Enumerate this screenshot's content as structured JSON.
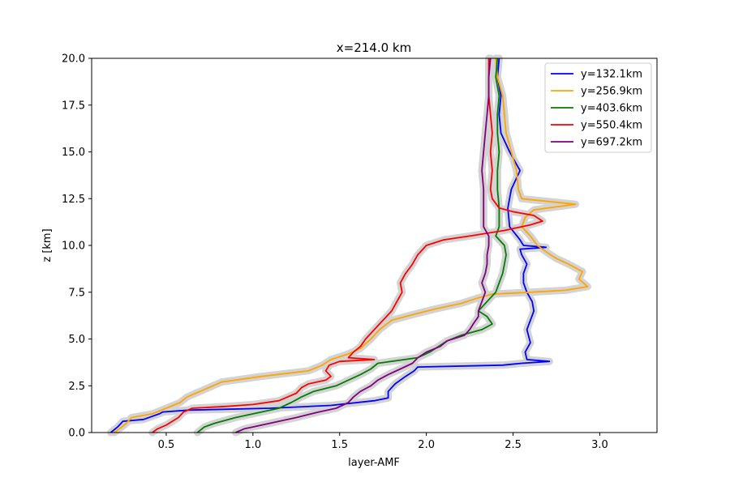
{
  "chart_data": {
    "type": "line",
    "title": "x=214.0 km",
    "xlabel": "layer-AMF",
    "ylabel": "z [km]",
    "xlim": [
      0.07,
      3.33
    ],
    "ylim": [
      0,
      20
    ],
    "xticks": [
      0.5,
      1.0,
      1.5,
      2.0,
      2.5,
      3.0
    ],
    "xtick_labels": [
      "0.5",
      "1.0",
      "1.5",
      "2.0",
      "2.5",
      "3.0"
    ],
    "yticks": [
      0,
      2.5,
      5.0,
      7.5,
      10.0,
      12.5,
      15.0,
      17.5,
      20.0
    ],
    "ytick_labels": [
      "0.0",
      "2.5",
      "5.0",
      "7.5",
      "10.0",
      "12.5",
      "15.0",
      "17.5",
      "20.0"
    ],
    "grid": false,
    "legend_position": "top-right",
    "uncertainty_band_color": "#d3d3d3",
    "series": [
      {
        "name": "y=132.1km",
        "color": "#0000ff",
        "points": [
          [
            0.18,
            0
          ],
          [
            0.22,
            0.3
          ],
          [
            0.25,
            0.6
          ],
          [
            0.37,
            0.7
          ],
          [
            0.46,
            1.0
          ],
          [
            0.48,
            1.1
          ],
          [
            0.63,
            1.2
          ],
          [
            1.1,
            1.3
          ],
          [
            1.45,
            1.45
          ],
          [
            1.7,
            1.7
          ],
          [
            1.78,
            1.85
          ],
          [
            1.78,
            2.2
          ],
          [
            1.82,
            2.6
          ],
          [
            1.88,
            3.0
          ],
          [
            1.93,
            3.3
          ],
          [
            1.95,
            3.5
          ],
          [
            2.44,
            3.6
          ],
          [
            2.55,
            3.7
          ],
          [
            2.71,
            3.8
          ],
          [
            2.58,
            3.9
          ],
          [
            2.57,
            4.3
          ],
          [
            2.6,
            4.8
          ],
          [
            2.58,
            5.5
          ],
          [
            2.6,
            6.0
          ],
          [
            2.62,
            6.5
          ],
          [
            2.61,
            7.0
          ],
          [
            2.58,
            7.5
          ],
          [
            2.56,
            8.0
          ],
          [
            2.56,
            8.5
          ],
          [
            2.58,
            9.0
          ],
          [
            2.55,
            9.5
          ],
          [
            2.54,
            9.8
          ],
          [
            2.69,
            9.9
          ],
          [
            2.56,
            10.0
          ],
          [
            2.54,
            10.3
          ],
          [
            2.48,
            11.0
          ],
          [
            2.47,
            12.0
          ],
          [
            2.49,
            13.0
          ],
          [
            2.54,
            14.0
          ],
          [
            2.48,
            15.0
          ],
          [
            2.43,
            16.0
          ],
          [
            2.42,
            17.0
          ],
          [
            2.43,
            18.0
          ],
          [
            2.41,
            19.0
          ],
          [
            2.42,
            20.0
          ]
        ]
      },
      {
        "name": "y=256.9km",
        "color": "#ffa500",
        "points": [
          [
            0.2,
            0
          ],
          [
            0.23,
            0.2
          ],
          [
            0.27,
            0.5
          ],
          [
            0.3,
            0.8
          ],
          [
            0.42,
            1.0
          ],
          [
            0.5,
            1.3
          ],
          [
            0.58,
            1.6
          ],
          [
            0.62,
            1.9
          ],
          [
            0.72,
            2.3
          ],
          [
            0.82,
            2.7
          ],
          [
            1.05,
            3.0
          ],
          [
            1.32,
            3.3
          ],
          [
            1.4,
            3.6
          ],
          [
            1.45,
            3.9
          ],
          [
            1.55,
            4.2
          ],
          [
            1.62,
            4.5
          ],
          [
            1.68,
            5.0
          ],
          [
            1.73,
            5.5
          ],
          [
            1.8,
            6.0
          ],
          [
            1.92,
            6.3
          ],
          [
            2.05,
            6.6
          ],
          [
            2.2,
            6.9
          ],
          [
            2.3,
            7.2
          ],
          [
            2.38,
            7.4
          ],
          [
            2.6,
            7.5
          ],
          [
            2.8,
            7.6
          ],
          [
            2.93,
            7.8
          ],
          [
            2.88,
            8.2
          ],
          [
            2.9,
            8.6
          ],
          [
            2.82,
            9.0
          ],
          [
            2.75,
            9.3
          ],
          [
            2.7,
            9.6
          ],
          [
            2.64,
            10.0
          ],
          [
            2.6,
            10.5
          ],
          [
            2.55,
            11.0
          ],
          [
            2.57,
            11.5
          ],
          [
            2.62,
            11.9
          ],
          [
            2.86,
            12.2
          ],
          [
            2.55,
            12.5
          ],
          [
            2.53,
            13.0
          ],
          [
            2.52,
            14.0
          ],
          [
            2.49,
            15.0
          ],
          [
            2.46,
            16.0
          ],
          [
            2.45,
            17.0
          ],
          [
            2.44,
            18.0
          ],
          [
            2.41,
            19.0
          ],
          [
            2.4,
            20.0
          ]
        ]
      },
      {
        "name": "y=403.6km",
        "color": "#008000",
        "points": [
          [
            0.68,
            0
          ],
          [
            0.72,
            0.3
          ],
          [
            0.78,
            0.5
          ],
          [
            0.9,
            0.8
          ],
          [
            1.05,
            1.1
          ],
          [
            1.15,
            1.3
          ],
          [
            1.22,
            1.6
          ],
          [
            1.28,
            1.9
          ],
          [
            1.35,
            2.2
          ],
          [
            1.48,
            2.5
          ],
          [
            1.55,
            2.8
          ],
          [
            1.62,
            3.1
          ],
          [
            1.68,
            3.4
          ],
          [
            1.72,
            3.7
          ],
          [
            1.95,
            4.0
          ],
          [
            2.02,
            4.3
          ],
          [
            2.07,
            4.6
          ],
          [
            2.12,
            4.9
          ],
          [
            2.2,
            5.2
          ],
          [
            2.32,
            5.5
          ],
          [
            2.38,
            5.8
          ],
          [
            2.35,
            6.2
          ],
          [
            2.3,
            6.5
          ],
          [
            2.35,
            7.0
          ],
          [
            2.4,
            7.5
          ],
          [
            2.42,
            8.0
          ],
          [
            2.44,
            8.5
          ],
          [
            2.45,
            9.0
          ],
          [
            2.46,
            9.5
          ],
          [
            2.45,
            10.0
          ],
          [
            2.4,
            10.5
          ],
          [
            2.42,
            11.0
          ],
          [
            2.42,
            12.0
          ],
          [
            2.41,
            13.0
          ],
          [
            2.41,
            14.0
          ],
          [
            2.42,
            15.0
          ],
          [
            2.41,
            16.0
          ],
          [
            2.41,
            17.0
          ],
          [
            2.42,
            18.0
          ],
          [
            2.4,
            19.0
          ],
          [
            2.41,
            20.0
          ]
        ]
      },
      {
        "name": "y=550.4km",
        "color": "#ff0000",
        "points": [
          [
            0.42,
            0
          ],
          [
            0.45,
            0.2
          ],
          [
            0.5,
            0.4
          ],
          [
            0.57,
            0.8
          ],
          [
            0.6,
            1.1
          ],
          [
            0.65,
            1.3
          ],
          [
            0.85,
            1.4
          ],
          [
            1.0,
            1.5
          ],
          [
            1.15,
            1.7
          ],
          [
            1.2,
            1.9
          ],
          [
            1.25,
            2.1
          ],
          [
            1.28,
            2.4
          ],
          [
            1.32,
            2.6
          ],
          [
            1.42,
            2.8
          ],
          [
            1.45,
            3.0
          ],
          [
            1.42,
            3.3
          ],
          [
            1.44,
            3.6
          ],
          [
            1.5,
            3.8
          ],
          [
            1.7,
            3.9
          ],
          [
            1.55,
            4.0
          ],
          [
            1.58,
            4.3
          ],
          [
            1.62,
            4.6
          ],
          [
            1.65,
            5.0
          ],
          [
            1.7,
            5.5
          ],
          [
            1.75,
            6.0
          ],
          [
            1.8,
            6.5
          ],
          [
            1.83,
            7.0
          ],
          [
            1.86,
            7.5
          ],
          [
            1.85,
            8.0
          ],
          [
            1.88,
            8.5
          ],
          [
            1.92,
            9.0
          ],
          [
            1.95,
            9.5
          ],
          [
            2.0,
            10.0
          ],
          [
            2.1,
            10.3
          ],
          [
            2.25,
            10.5
          ],
          [
            2.45,
            10.8
          ],
          [
            2.6,
            11.1
          ],
          [
            2.67,
            11.3
          ],
          [
            2.62,
            11.6
          ],
          [
            2.5,
            11.8
          ],
          [
            2.42,
            12.0
          ],
          [
            2.38,
            12.5
          ],
          [
            2.37,
            13.0
          ],
          [
            2.38,
            14.0
          ],
          [
            2.37,
            15.0
          ],
          [
            2.38,
            16.0
          ],
          [
            2.37,
            17.0
          ],
          [
            2.36,
            18.0
          ],
          [
            2.36,
            19.0
          ],
          [
            2.36,
            20.0
          ]
        ]
      },
      {
        "name": "y=697.2km",
        "color": "#800080",
        "points": [
          [
            0.9,
            0
          ],
          [
            0.95,
            0.2
          ],
          [
            1.0,
            0.3
          ],
          [
            1.15,
            0.6
          ],
          [
            1.25,
            0.8
          ],
          [
            1.38,
            1.1
          ],
          [
            1.48,
            1.3
          ],
          [
            1.55,
            1.6
          ],
          [
            1.58,
            1.9
          ],
          [
            1.62,
            2.2
          ],
          [
            1.68,
            2.5
          ],
          [
            1.72,
            2.8
          ],
          [
            1.78,
            3.1
          ],
          [
            1.85,
            3.4
          ],
          [
            1.92,
            3.7
          ],
          [
            1.95,
            4.0
          ],
          [
            2.0,
            4.3
          ],
          [
            2.08,
            4.6
          ],
          [
            2.12,
            4.9
          ],
          [
            2.22,
            5.2
          ],
          [
            2.25,
            5.5
          ],
          [
            2.27,
            5.8
          ],
          [
            2.3,
            6.2
          ],
          [
            2.3,
            6.5
          ],
          [
            2.32,
            7.0
          ],
          [
            2.34,
            7.5
          ],
          [
            2.32,
            8.0
          ],
          [
            2.34,
            8.5
          ],
          [
            2.35,
            9.0
          ],
          [
            2.35,
            9.5
          ],
          [
            2.36,
            10.0
          ],
          [
            2.36,
            10.5
          ],
          [
            2.33,
            11.0
          ],
          [
            2.33,
            12.0
          ],
          [
            2.33,
            13.0
          ],
          [
            2.32,
            14.0
          ],
          [
            2.33,
            15.0
          ],
          [
            2.34,
            16.0
          ],
          [
            2.35,
            17.0
          ],
          [
            2.36,
            18.0
          ],
          [
            2.36,
            19.0
          ],
          [
            2.37,
            20.0
          ]
        ]
      }
    ]
  }
}
